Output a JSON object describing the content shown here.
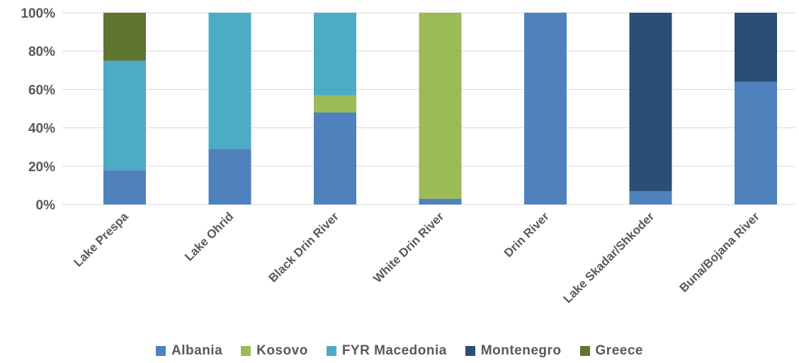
{
  "chart_data": {
    "type": "bar",
    "stacked": true,
    "percent": true,
    "categories": [
      "Lake Prespa",
      "Lake Ohrid",
      "Black Drin River",
      "White Drin River",
      "Drin River",
      "Lake Skadar/Shkoder",
      "Buna/Bojana River"
    ],
    "series": [
      {
        "name": "Albania",
        "color": "#4F81BD",
        "values": [
          18,
          29,
          48,
          3,
          100,
          7,
          64
        ]
      },
      {
        "name": "Kosovo",
        "color": "#9BBB59",
        "values": [
          0,
          0,
          9,
          97,
          0,
          0,
          0
        ]
      },
      {
        "name": "FYR Macedonia",
        "color": "#4BACC6",
        "values": [
          57,
          71,
          43,
          0,
          0,
          0,
          0
        ]
      },
      {
        "name": "Montenegro",
        "color": "#2C4D75",
        "values": [
          0,
          0,
          0,
          0,
          0,
          93,
          36
        ]
      },
      {
        "name": "Greece",
        "color": "#5F7530",
        "values": [
          25,
          0,
          0,
          0,
          0,
          0,
          0
        ]
      }
    ],
    "ylim": [
      0,
      100
    ],
    "yticks": [
      "0%",
      "20%",
      "40%",
      "60%",
      "80%",
      "100%"
    ],
    "ytick_values": [
      0,
      20,
      40,
      60,
      80,
      100
    ],
    "grid": true,
    "legend_position": "bottom",
    "title": "",
    "xlabel": "",
    "ylabel": ""
  }
}
